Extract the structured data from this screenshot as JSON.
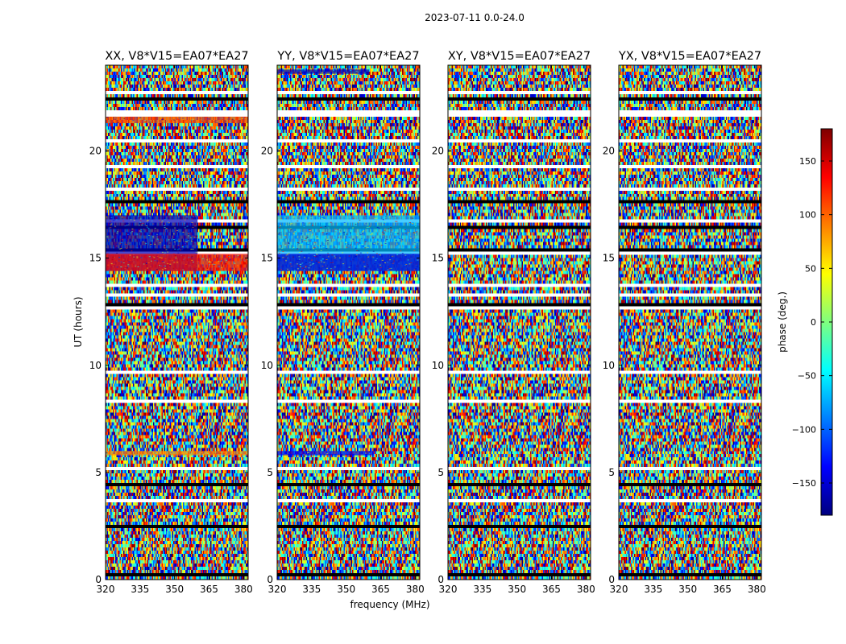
{
  "figure": {
    "suptitle": "2023-07-11 0.0-24.0",
    "xlabel": "frequency (MHz)",
    "ylabel": "UT (hours)"
  },
  "colorbar": {
    "label": "phase (deg.)",
    "range": [
      -180,
      180
    ],
    "ticks": [
      -150,
      -100,
      -50,
      0,
      50,
      100,
      150
    ],
    "tick_labels": [
      "−150",
      "−100",
      "−50",
      "0",
      "50",
      "100",
      "150"
    ],
    "colormap": "jet",
    "colors": [
      "#00007f",
      "#0000ff",
      "#007fff",
      "#00ffff",
      "#7fff7f",
      "#ffff00",
      "#ff7f00",
      "#ff0000",
      "#7f0000"
    ]
  },
  "chart_data": [
    {
      "type": "heatmap",
      "title": "XX, V8*V15=EA07*EA27",
      "x_range": [
        320,
        382
      ],
      "y_range": [
        0,
        24
      ],
      "xticks": [
        320,
        335,
        350,
        365,
        380
      ],
      "yticks": [
        0,
        5,
        10,
        15,
        20
      ],
      "value_quantity": "phase (deg.)",
      "features": [
        {
          "y0": 14.4,
          "y1": 17.0,
          "phase": -160,
          "x_end": 360
        },
        {
          "y0": 14.4,
          "y1": 15.2,
          "phase": 130,
          "x_end": 382
        },
        {
          "y0": 21.3,
          "y1": 21.6,
          "phase": 110,
          "x_end": 382
        },
        {
          "y0": 5.8,
          "y1": 6.0,
          "phase": 90,
          "x_end": 382
        }
      ]
    },
    {
      "type": "heatmap",
      "title": "YY, V8*V15=EA07*EA27",
      "x_range": [
        320,
        382
      ],
      "y_range": [
        0,
        24
      ],
      "xticks": [
        320,
        335,
        350,
        365,
        380
      ],
      "yticks": [
        0,
        5,
        10,
        15,
        20
      ],
      "value_quantity": "phase (deg.)",
      "features": [
        {
          "y0": 14.4,
          "y1": 17.0,
          "phase": -70,
          "x_end": 382
        },
        {
          "y0": 14.4,
          "y1": 15.2,
          "phase": -150,
          "x_end": 382
        },
        {
          "y0": 23.6,
          "y1": 23.8,
          "phase": -160,
          "x_end": 360
        },
        {
          "y0": 5.8,
          "y1": 6.0,
          "phase": -140,
          "x_end": 362
        }
      ]
    },
    {
      "type": "heatmap",
      "title": "XY, V8*V15=EA07*EA27",
      "x_range": [
        320,
        382
      ],
      "y_range": [
        0,
        24
      ],
      "xticks": [
        320,
        335,
        350,
        365,
        380
      ],
      "yticks": [
        0,
        5,
        10,
        15,
        20
      ],
      "value_quantity": "phase (deg.)",
      "features": []
    },
    {
      "type": "heatmap",
      "title": "YX, V8*V15=EA07*EA27",
      "x_range": [
        320,
        382
      ],
      "y_range": [
        0,
        24
      ],
      "xticks": [
        320,
        335,
        350,
        365,
        380
      ],
      "yticks": [
        0,
        5,
        10,
        15,
        20
      ],
      "value_quantity": "phase (deg.)",
      "features": []
    }
  ]
}
